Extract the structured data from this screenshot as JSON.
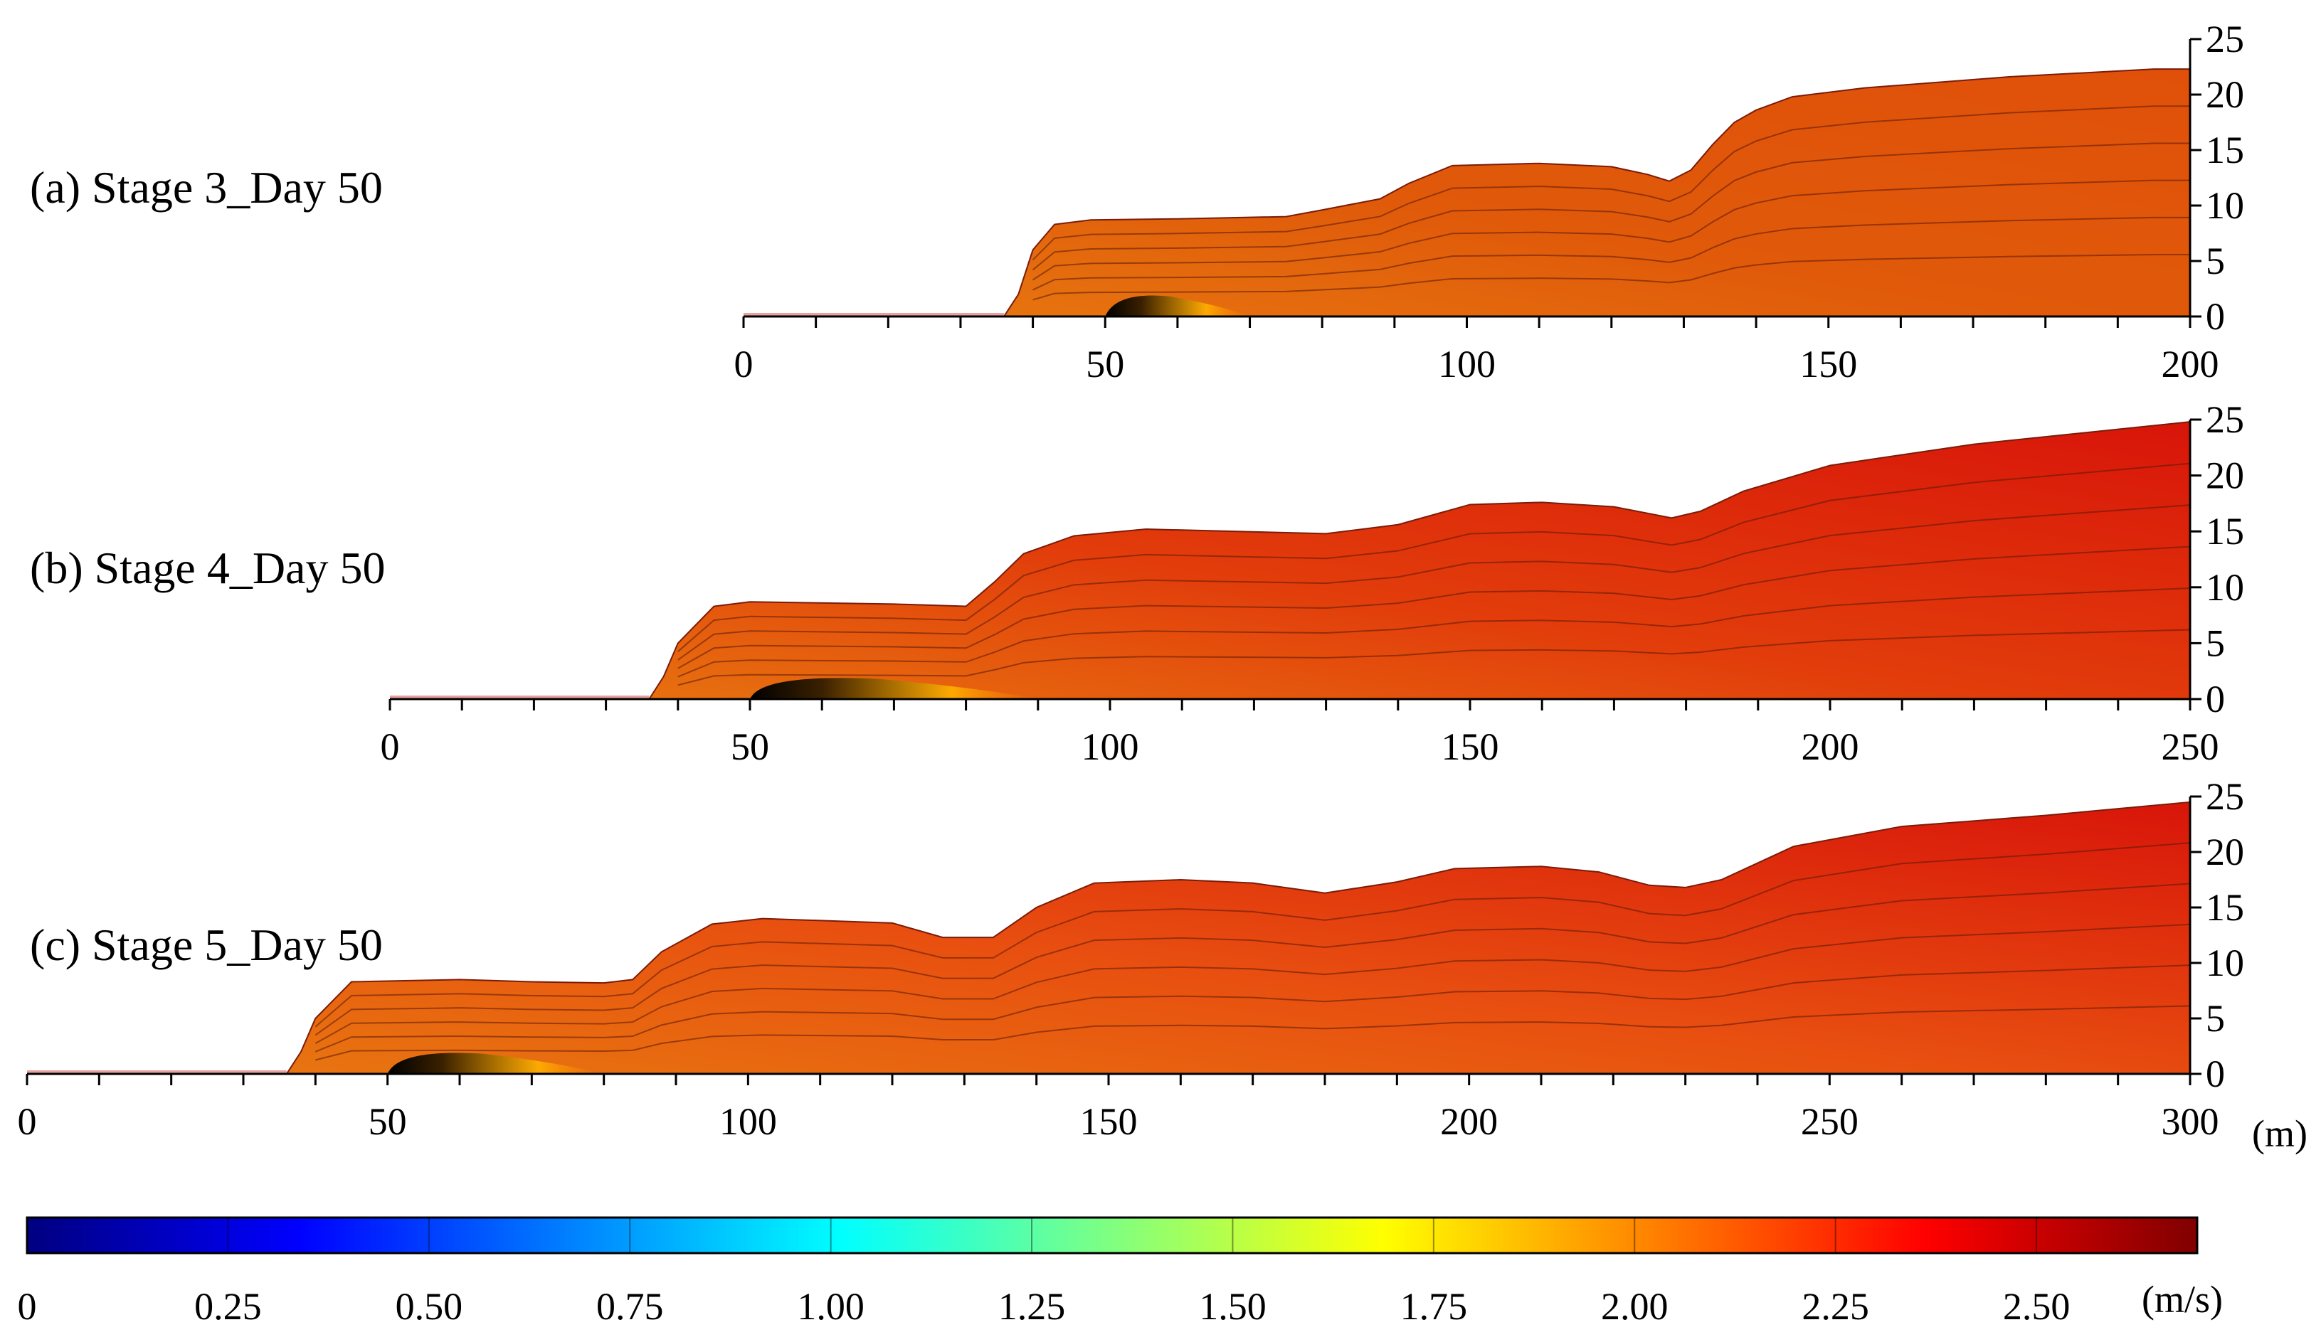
{
  "chart_data": [
    {
      "type": "heatmap",
      "title": "(a) Stage 3_Day 50",
      "x_ticks": [
        "0",
        "50",
        "100",
        "150",
        "200"
      ],
      "y_ticks": [
        "0",
        "5",
        "10",
        "15",
        "20",
        "25"
      ],
      "xlim": [
        0,
        200
      ],
      "ylim": [
        0,
        25
      ],
      "surface_profile": {
        "x": [
          0,
          36,
          38,
          40,
          43,
          48,
          60,
          75,
          80,
          88,
          92,
          98,
          110,
          120,
          125,
          128,
          131,
          134,
          137,
          140,
          145,
          155,
          175,
          195,
          200
        ],
        "y": [
          0,
          0,
          2,
          6,
          8.3,
          8.7,
          8.8,
          9,
          9.6,
          10.6,
          12,
          13.6,
          13.8,
          13.5,
          12.8,
          12.2,
          13.2,
          15.5,
          17.5,
          18.6,
          19.8,
          20.6,
          21.6,
          22.3,
          22.3
        ]
      },
      "dominant_color": "#e05a0a",
      "low_velocity_zone_x": [
        50,
        70
      ]
    },
    {
      "type": "heatmap",
      "title": "(b) Stage 4_Day 50",
      "x_ticks": [
        "0",
        "50",
        "100",
        "150",
        "200",
        "250"
      ],
      "y_ticks": [
        "0",
        "5",
        "10",
        "15",
        "20",
        "25"
      ],
      "xlim": [
        0,
        250
      ],
      "ylim": [
        0,
        25
      ],
      "surface_profile": {
        "x": [
          0,
          36,
          38,
          40,
          45,
          50,
          70,
          80,
          84,
          88,
          95,
          105,
          130,
          140,
          150,
          160,
          170,
          178,
          182,
          188,
          200,
          220,
          250
        ],
        "y": [
          0,
          0,
          2,
          5,
          8.3,
          8.7,
          8.5,
          8.3,
          10.5,
          13,
          14.6,
          15.2,
          14.8,
          15.6,
          17.4,
          17.6,
          17.2,
          16.2,
          16.8,
          18.6,
          20.9,
          22.8,
          24.8
        ]
      },
      "dominant_color": "#e23d0b",
      "low_velocity_zone_x": [
        50,
        90
      ]
    },
    {
      "type": "heatmap",
      "title": "(c) Stage 5_Day 50",
      "x_ticks": [
        "0",
        "50",
        "100",
        "150",
        "200",
        "250",
        "300"
      ],
      "y_ticks": [
        "0",
        "5",
        "10",
        "15",
        "20",
        "25"
      ],
      "xlim": [
        0,
        300
      ],
      "ylim": [
        0,
        25
      ],
      "surface_profile": {
        "x": [
          0,
          36,
          38,
          40,
          45,
          60,
          70,
          80,
          84,
          88,
          95,
          102,
          120,
          127,
          134,
          140,
          148,
          160,
          170,
          180,
          190,
          198,
          210,
          218,
          225,
          230,
          235,
          245,
          260,
          280,
          300
        ],
        "y": [
          0,
          0,
          2,
          5,
          8.3,
          8.5,
          8.3,
          8.2,
          8.5,
          11,
          13.5,
          14,
          13.6,
          12.3,
          12.3,
          15,
          17.2,
          17.5,
          17.2,
          16.3,
          17.3,
          18.5,
          18.7,
          18.2,
          17,
          16.8,
          17.5,
          20.5,
          22.3,
          23.3,
          24.5
        ]
      },
      "dominant_color": "#e85010",
      "low_velocity_zone_x": [
        50,
        80
      ]
    }
  ],
  "x_unit": "(m)",
  "colorbar": {
    "tick_labels": [
      "0",
      "0.25",
      "0.50",
      "0.75",
      "1.00",
      "1.25",
      "1.50",
      "1.75",
      "2.00",
      "2.25",
      "2.50"
    ],
    "range": [
      0,
      2.7
    ],
    "unit": "(m/s)",
    "colormap": [
      "#000080",
      "#0000ff",
      "#0080ff",
      "#00ffff",
      "#80ff80",
      "#ffff00",
      "#ff8000",
      "#ff0000",
      "#800000"
    ]
  }
}
